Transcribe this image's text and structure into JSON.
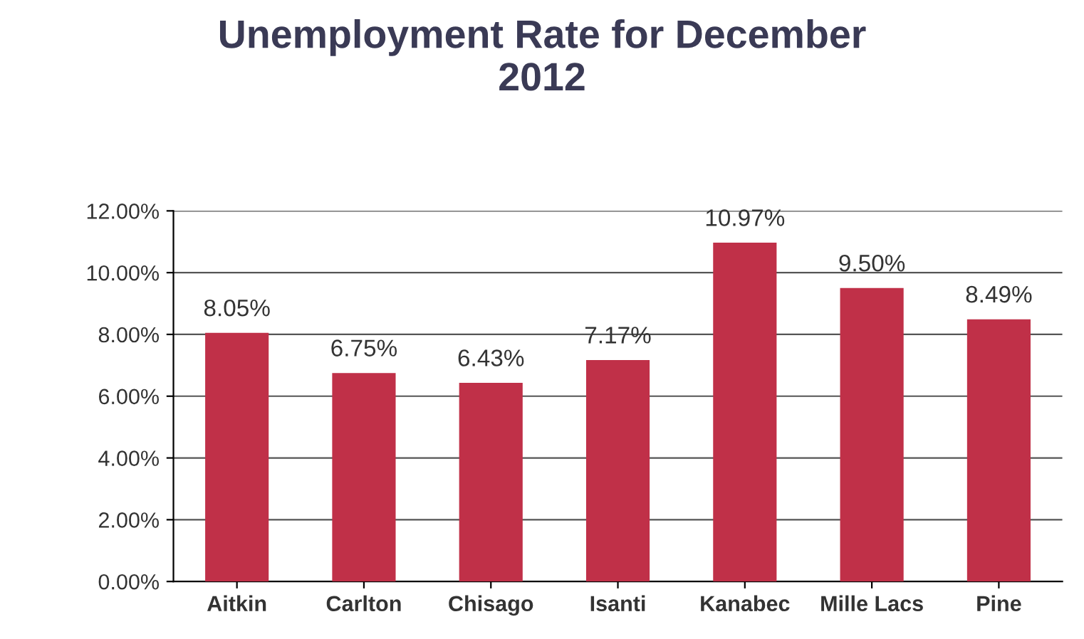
{
  "chart_data": {
    "type": "bar",
    "title": "Unemployment Rate for December\n2012",
    "categories": [
      "Aitkin",
      "Carlton",
      "Chisago",
      "Isanti",
      "Kanabec",
      "Mille Lacs",
      "Pine"
    ],
    "values": [
      8.05,
      6.75,
      6.43,
      7.17,
      10.97,
      9.5,
      8.49
    ],
    "value_labels": [
      "8.05%",
      "6.75%",
      "6.43%",
      "7.17%",
      "10.97%",
      "9.50%",
      "8.49%"
    ],
    "color": "#c03048",
    "ylim": [
      0,
      12
    ],
    "yticks": [
      {
        "value": 0,
        "label": "0.00%"
      },
      {
        "value": 2,
        "label": "2.00%"
      },
      {
        "value": 4,
        "label": "4.00%"
      },
      {
        "value": 6,
        "label": "6.00%"
      },
      {
        "value": 8,
        "label": "8.00%"
      },
      {
        "value": 10,
        "label": "10.00%"
      },
      {
        "value": 12,
        "label": "12.00%"
      }
    ],
    "grid": "y"
  }
}
